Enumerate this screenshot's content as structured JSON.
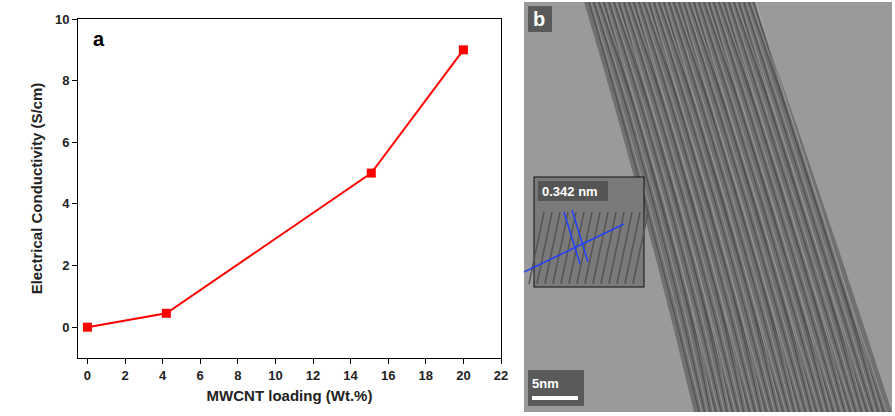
{
  "chart_data": {
    "type": "line",
    "panel_label": "a",
    "x_label": "MWCNT loading (Wt.%)",
    "y_label": "Electrical Conductivity (S/cm)",
    "x": [
      0,
      4.2,
      15.1,
      20
    ],
    "values": [
      0,
      0.45,
      5,
      9
    ],
    "color": "#ff0000",
    "marker": "square",
    "xlim": [
      -0.5,
      22
    ],
    "xticks": [
      0,
      2,
      4,
      6,
      8,
      10,
      12,
      14,
      16,
      18,
      20,
      22
    ],
    "ylim": [
      -1,
      10
    ],
    "yticks": [
      0,
      2,
      4,
      6,
      8,
      10
    ],
    "grid": false
  },
  "image_panel": {
    "panel_label": "b",
    "inset_label": "0.342 nm",
    "scale_bar": "5nm"
  }
}
